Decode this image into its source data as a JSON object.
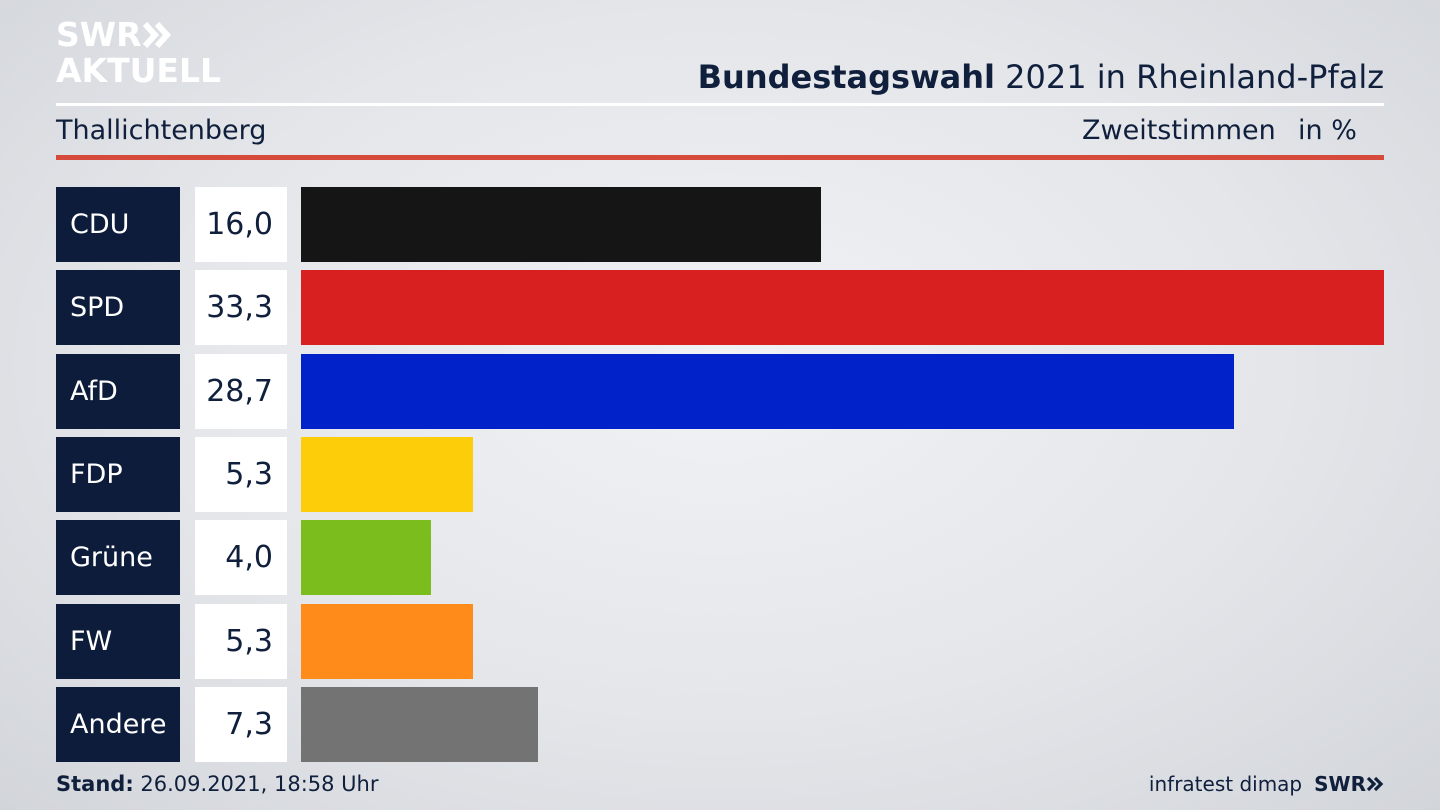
{
  "logo": {
    "line1": "SWR",
    "line2": "AKTUELL"
  },
  "header": {
    "title_bold": "Bundestagswahl",
    "title_rest": " 2021 in Rheinland-Pfalz",
    "location": "Thallichtenberg",
    "vote_type": "Zweitstimmen",
    "unit": "in %"
  },
  "footer": {
    "stand_label": "Stand:",
    "stand_value": " 26.09.2021, 18:58 Uhr",
    "source": "infratest dimap",
    "brand": "SWR"
  },
  "colors": {
    "CDU": "#151515",
    "SPD": "#d82020",
    "AfD": "#0022c8",
    "FDP": "#fdcd0a",
    "Grüne": "#7bbd1c",
    "FW": "#ff8c1a",
    "Andere": "#737373"
  },
  "chart_data": {
    "type": "bar",
    "orientation": "horizontal",
    "categories": [
      "CDU",
      "SPD",
      "AfD",
      "FDP",
      "Grüne",
      "FW",
      "Andere"
    ],
    "values": [
      16.0,
      33.3,
      28.7,
      5.3,
      4.0,
      5.3,
      7.3
    ],
    "value_labels": [
      "16,0",
      "33,3",
      "28,7",
      "5,3",
      "4,0",
      "5,3",
      "7,3"
    ],
    "xlim": [
      0,
      33.3
    ],
    "grid": false
  }
}
